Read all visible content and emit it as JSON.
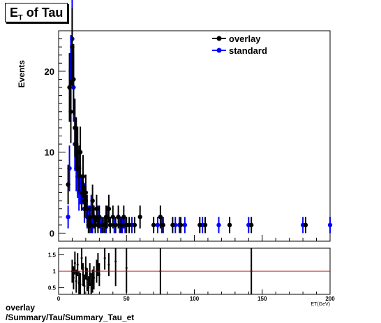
{
  "header": {
    "title_main": "E",
    "title_sub": "T",
    "title_rest": " of Tau"
  },
  "footer": {
    "line1": "overlay",
    "line2": "/Summary/Tau/Summary_Tau_et"
  },
  "colors": {
    "overlay": "#000000",
    "standard": "#0000ff",
    "ratio_line": "#cc0000"
  },
  "chart_data": [
    {
      "type": "scatter",
      "title": "ET of Tau",
      "xlabel": "ET(GeV)",
      "ylabel": "Events",
      "xlim": [
        0,
        200
      ],
      "ylim": [
        -1,
        25
      ],
      "yticks": [
        0,
        10,
        20
      ],
      "xticks": [
        0,
        50,
        100,
        150,
        200
      ],
      "legend": {
        "position": "top-right",
        "entries": [
          "overlay",
          "standard"
        ]
      },
      "series": [
        {
          "name": "overlay",
          "color": "#000000",
          "points": [
            [
              7,
              6
            ],
            [
              8,
              18
            ],
            [
              9,
              15
            ],
            [
              10,
              23
            ],
            [
              11,
              19
            ],
            [
              12,
              13
            ],
            [
              13,
              11
            ],
            [
              14,
              10
            ],
            [
              15,
              8
            ],
            [
              16,
              10
            ],
            [
              17,
              5
            ],
            [
              18,
              7
            ],
            [
              19,
              4
            ],
            [
              20,
              5
            ],
            [
              21,
              3
            ],
            [
              22,
              1
            ],
            [
              23,
              2
            ],
            [
              24,
              1
            ],
            [
              25,
              4
            ],
            [
              26,
              2
            ],
            [
              27,
              1
            ],
            [
              28,
              3
            ],
            [
              29,
              1
            ],
            [
              30,
              2
            ],
            [
              32,
              1
            ],
            [
              34,
              1
            ],
            [
              35,
              2
            ],
            [
              37,
              3
            ],
            [
              38,
              1
            ],
            [
              40,
              2
            ],
            [
              42,
              1
            ],
            [
              44,
              2
            ],
            [
              46,
              1
            ],
            [
              48,
              2
            ],
            [
              50,
              1
            ],
            [
              52,
              1
            ],
            [
              56,
              1
            ],
            [
              60,
              2
            ],
            [
              70,
              1
            ],
            [
              75,
              2
            ],
            [
              77,
              1
            ],
            [
              84,
              1
            ],
            [
              90,
              1
            ],
            [
              104,
              1
            ],
            [
              108,
              1
            ],
            [
              126,
              1
            ],
            [
              142,
              1
            ],
            [
              182,
              1
            ]
          ]
        },
        {
          "name": "standard",
          "color": "#0000ff",
          "points": [
            [
              7,
              2
            ],
            [
              8,
              8
            ],
            [
              9,
              20
            ],
            [
              10,
              24
            ],
            [
              11,
              18
            ],
            [
              12,
              11
            ],
            [
              13,
              8
            ],
            [
              14,
              7
            ],
            [
              15,
              5
            ],
            [
              16,
              6
            ],
            [
              17,
              5
            ],
            [
              18,
              6
            ],
            [
              19,
              3
            ],
            [
              20,
              4
            ],
            [
              21,
              2
            ],
            [
              22,
              2
            ],
            [
              23,
              1
            ],
            [
              24,
              3
            ],
            [
              25,
              1
            ],
            [
              26,
              2
            ],
            [
              27,
              1
            ],
            [
              29,
              2
            ],
            [
              31,
              1
            ],
            [
              33,
              1
            ],
            [
              35,
              1
            ],
            [
              36,
              2
            ],
            [
              38,
              1
            ],
            [
              41,
              1
            ],
            [
              45,
              1
            ],
            [
              47,
              1
            ],
            [
              49,
              1
            ],
            [
              54,
              1
            ],
            [
              73,
              1
            ],
            [
              76,
              1
            ],
            [
              86,
              1
            ],
            [
              89,
              1
            ],
            [
              93,
              1
            ],
            [
              106,
              1
            ],
            [
              118,
              1
            ],
            [
              140,
              1
            ],
            [
              180,
              1
            ],
            [
              200,
              1
            ]
          ]
        }
      ]
    },
    {
      "type": "bar",
      "title": "",
      "xlabel": "ET(GeV)",
      "ylabel": "",
      "xlim": [
        0,
        200
      ],
      "ylim": [
        0.3,
        1.7
      ],
      "yticks": [
        0.5,
        1,
        1.5
      ],
      "reference_line": 1,
      "ratio_points": [
        [
          10,
          1.0
        ],
        [
          11,
          0.8
        ],
        [
          12,
          1.25
        ],
        [
          13,
          0.7
        ],
        [
          14,
          1.2
        ],
        [
          15,
          0.65
        ],
        [
          16,
          0.6
        ],
        [
          17,
          1.4
        ],
        [
          18,
          0.9
        ],
        [
          19,
          0.55
        ],
        [
          20,
          1.1
        ],
        [
          21,
          0.75
        ],
        [
          22,
          0.5
        ],
        [
          23,
          0.9
        ],
        [
          24,
          0.6
        ],
        [
          25,
          0.7
        ],
        [
          26,
          0.8
        ],
        [
          28,
          1.0
        ],
        [
          29,
          1.2
        ],
        [
          30,
          0.9
        ],
        [
          34,
          1.4
        ],
        [
          37,
          1.2
        ],
        [
          42,
          1.3
        ],
        [
          50,
          1.1
        ],
        [
          75,
          1.0
        ],
        [
          142,
          1.0
        ]
      ]
    }
  ]
}
